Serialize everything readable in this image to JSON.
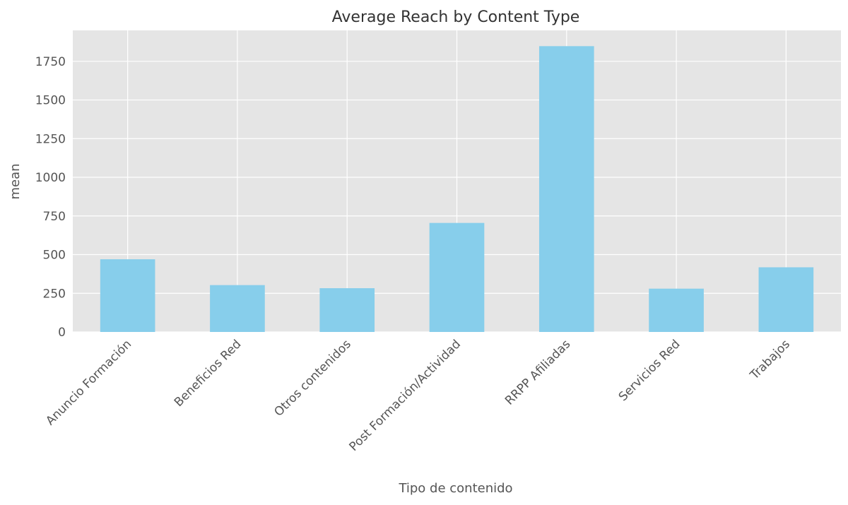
{
  "chart_data": {
    "type": "bar",
    "title": "Average Reach by Content Type",
    "xlabel": "Tipo de contenido",
    "ylabel": "mean",
    "categories": [
      "Anuncio Formación",
      "Beneficios Red",
      "Otros contenidos",
      "Post Formación/Actividad",
      "RRPP Afiliadas",
      "Servicios Red",
      "Trabajos"
    ],
    "values": [
      470,
      303,
      283,
      705,
      1848,
      280,
      418
    ],
    "ylim": [
      0,
      1950
    ],
    "yticks": [
      0,
      250,
      500,
      750,
      1000,
      1250,
      1500,
      1750
    ],
    "grid": true,
    "colors": {
      "bar": "#87CEEB",
      "plot_background": "#E5E5E5",
      "grid": "#FFFFFF"
    }
  }
}
